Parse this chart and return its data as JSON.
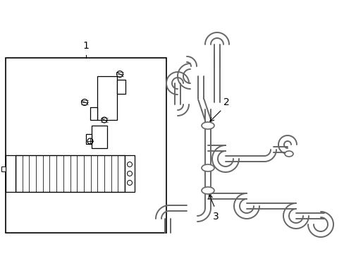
{
  "bg_color": "#ffffff",
  "line_color": "#000000",
  "fig_width": 4.89,
  "fig_height": 3.6,
  "dpi": 100,
  "lc": "#000000",
  "gray": "#888888"
}
